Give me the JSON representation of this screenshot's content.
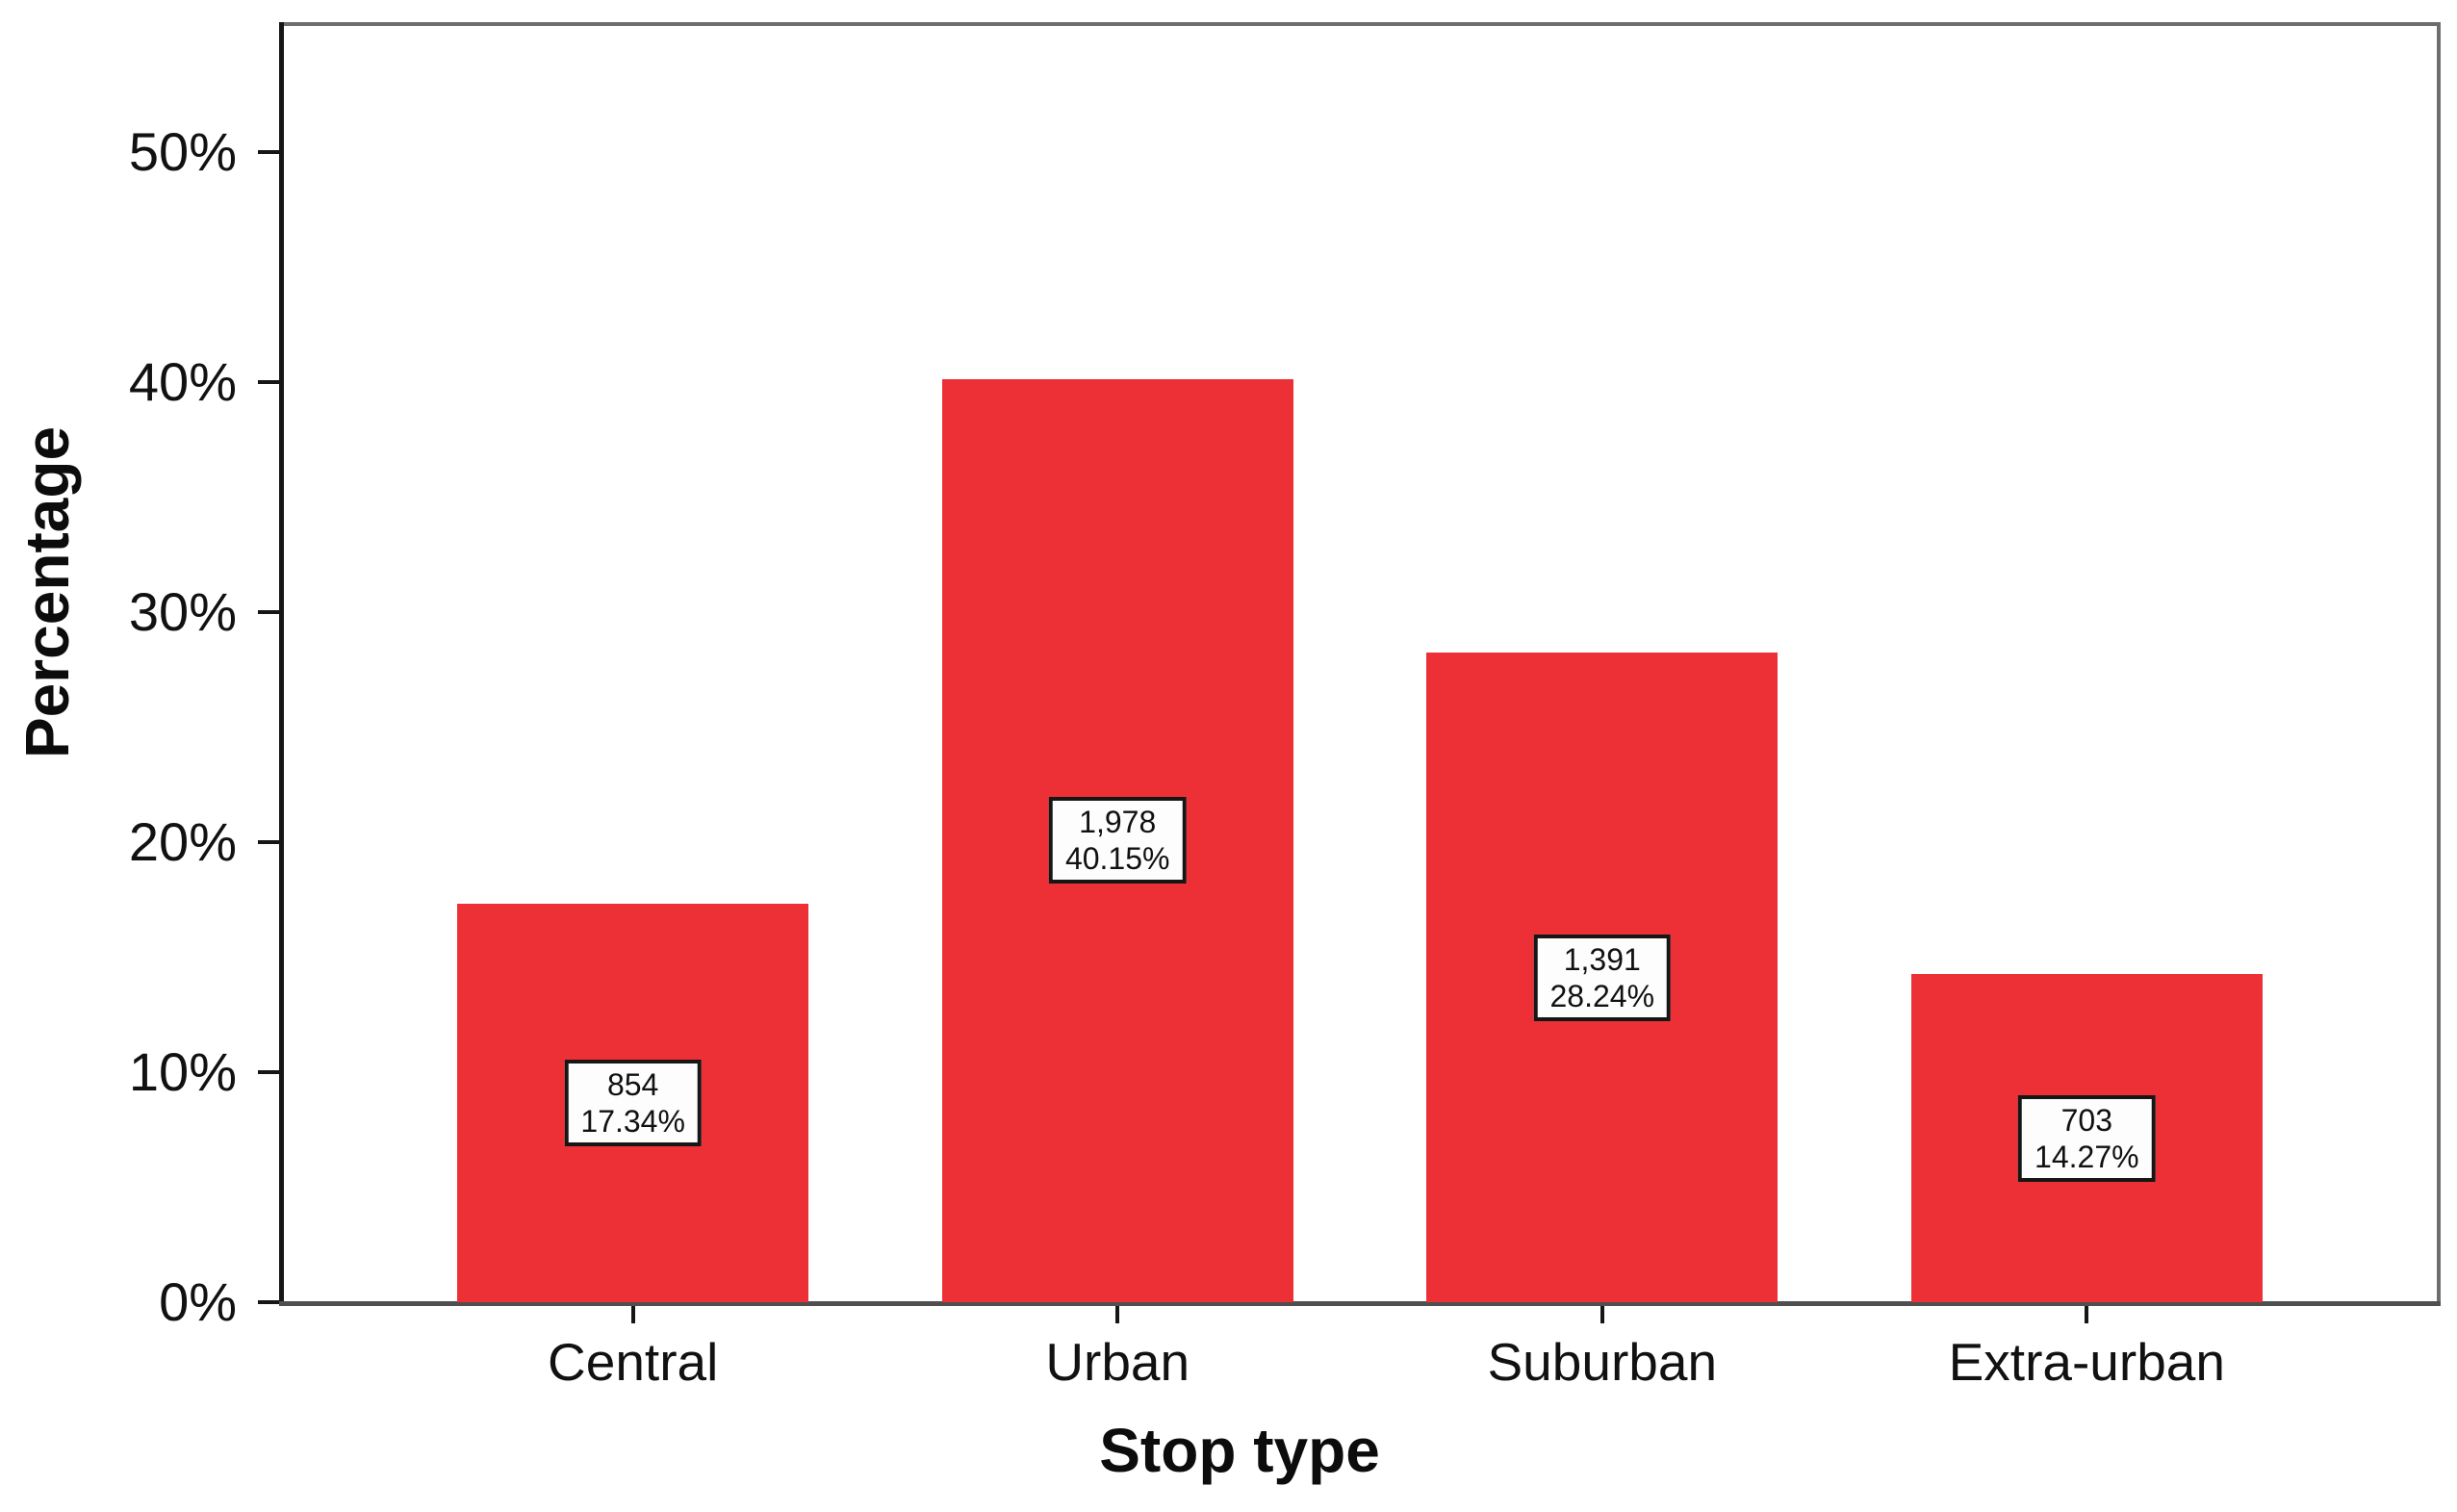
{
  "chart_data": {
    "type": "bar",
    "title": "",
    "categories": [
      "Central",
      "Urban",
      "Suburban",
      "Extra-urban"
    ],
    "series": [
      {
        "name": "Percentage",
        "values": [
          17.34,
          40.15,
          28.24,
          14.27
        ]
      }
    ],
    "counts": [
      "854",
      "1,978",
      "1,391",
      "703"
    ],
    "value_labels": [
      "17.34%",
      "40.15%",
      "28.24%",
      "14.27%"
    ],
    "xlabel": "Stop type",
    "ylabel": "Percentage",
    "ylim": [
      0,
      55.5
    ],
    "yticks": {
      "values": [
        0,
        10,
        20,
        30,
        40,
        50
      ],
      "labels": [
        "0%",
        "10%",
        "20%",
        "30%",
        "40%",
        "50%"
      ]
    },
    "grid": false,
    "legend": false,
    "bar_color": "#ED3036",
    "label_box_bg": "#FDFDFD",
    "label_box_border": "#161616",
    "axis_box_color": "#6E6E6E"
  }
}
